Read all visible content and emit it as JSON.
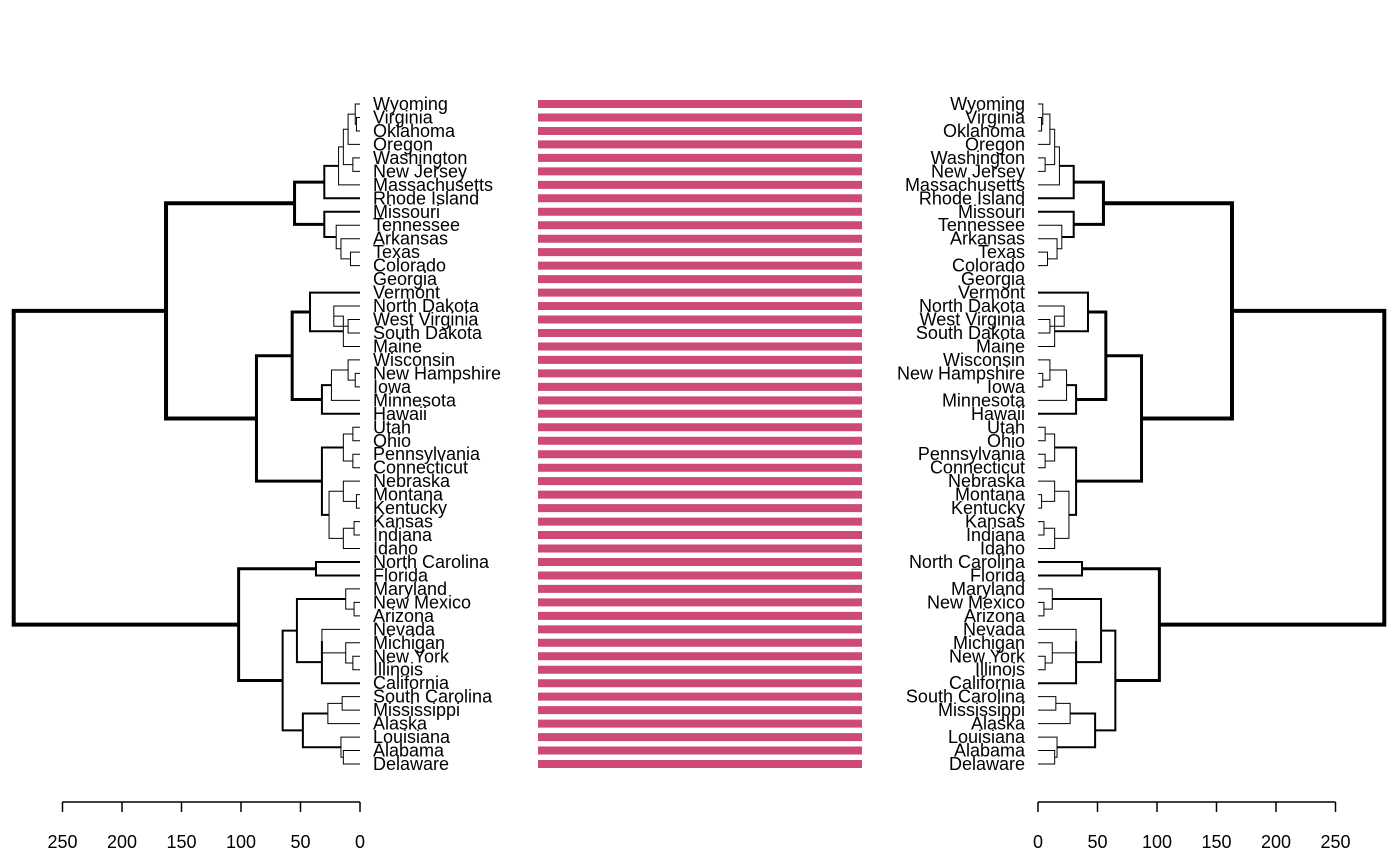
{
  "chart_data": {
    "type": "tanglegram",
    "leaves": [
      "Wyoming",
      "Virginia",
      "Oklahoma",
      "Oregon",
      "Washington",
      "New Jersey",
      "Massachusetts",
      "Rhode Island",
      "Missouri",
      "Tennessee",
      "Arkansas",
      "Texas",
      "Colorado",
      "Georgia",
      "Vermont",
      "North Dakota",
      "West Virginia",
      "South Dakota",
      "Maine",
      "Wisconsin",
      "New Hampshire",
      "Iowa",
      "Minnesota",
      "Hawaii",
      "Utah",
      "Ohio",
      "Pennsylvania",
      "Connecticut",
      "Nebraska",
      "Montana",
      "Kentucky",
      "Kansas",
      "Indiana",
      "Idaho",
      "North Carolina",
      "Florida",
      "Maryland",
      "New Mexico",
      "Arizona",
      "Nevada",
      "Michigan",
      "New York",
      "Illinois",
      "California",
      "South Carolina",
      "Mississippi",
      "Alaska",
      "Louisiana",
      "Alabama",
      "Delaware"
    ],
    "left_axis": {
      "ticks": [
        250,
        200,
        150,
        100,
        50,
        0
      ],
      "range": [
        0,
        250
      ]
    },
    "right_axis": {
      "ticks": [
        0,
        50,
        100,
        150,
        200,
        250
      ],
      "range": [
        0,
        250
      ]
    },
    "connector_color": "#cc4a74",
    "branch_color": "#000000",
    "dendrogram": {
      "leaf": [
        [
          "Wyoming",
          0
        ],
        [
          "Virginia",
          1
        ],
        [
          "Oklahoma",
          2
        ],
        [
          "Oregon",
          3
        ],
        [
          "Washington",
          4
        ],
        [
          "New Jersey",
          5
        ],
        [
          "Massachusetts",
          6
        ],
        [
          "Rhode Island",
          7
        ],
        [
          "Missouri",
          8
        ],
        [
          "Tennessee",
          9
        ],
        [
          "Arkansas",
          10
        ],
        [
          "Texas",
          11
        ],
        [
          "Colorado",
          12
        ],
        [
          "Georgia",
          13
        ],
        [
          "Vermont",
          14
        ],
        [
          "North Dakota",
          15
        ],
        [
          "West Virginia",
          16
        ],
        [
          "South Dakota",
          17
        ],
        [
          "Maine",
          18
        ],
        [
          "Wisconsin",
          19
        ],
        [
          "New Hampshire",
          20
        ],
        [
          "Iowa",
          21
        ],
        [
          "Minnesota",
          22
        ],
        [
          "Hawaii",
          23
        ],
        [
          "Utah",
          24
        ],
        [
          "Ohio",
          25
        ],
        [
          "Pennsylvania",
          26
        ],
        [
          "Connecticut",
          27
        ],
        [
          "Nebraska",
          28
        ],
        [
          "Montana",
          29
        ],
        [
          "Kentucky",
          30
        ],
        [
          "Kansas",
          31
        ],
        [
          "Indiana",
          32
        ],
        [
          "Idaho",
          33
        ],
        [
          "North Carolina",
          34
        ],
        [
          "Florida",
          35
        ],
        [
          "Maryland",
          36
        ],
        [
          "New Mexico",
          37
        ],
        [
          "Arizona",
          38
        ],
        [
          "Nevada",
          39
        ],
        [
          "Michigan",
          40
        ],
        [
          "New York",
          41
        ],
        [
          "Illinois",
          42
        ],
        [
          "California",
          43
        ],
        [
          "South Carolina",
          44
        ],
        [
          "Mississippi",
          45
        ],
        [
          "Alaska",
          46
        ],
        [
          "Louisiana",
          47
        ],
        [
          "Alabama",
          48
        ],
        [
          "Delaware",
          49
        ]
      ],
      "merges": [
        [
          3,
          1,
          2,
          1,
          0
        ],
        [
          4,
          0,
          50,
          1,
          0
        ],
        [
          6,
          4,
          5,
          1,
          0
        ],
        [
          10,
          51,
          3,
          1,
          0
        ],
        [
          14,
          53,
          52,
          1,
          0
        ],
        [
          18,
          54,
          6,
          1,
          0
        ],
        [
          30,
          55,
          7,
          2,
          0
        ],
        [
          8,
          11,
          12,
          1,
          0
        ],
        [
          16,
          10,
          57,
          1,
          0
        ],
        [
          20,
          9,
          58,
          1,
          0
        ],
        [
          30,
          8,
          59,
          2,
          0
        ],
        [
          55,
          56,
          60,
          3,
          0
        ],
        [
          10,
          16,
          17,
          1,
          0
        ],
        [
          22,
          15,
          62,
          1,
          0
        ],
        [
          14,
          18,
          63,
          1,
          0
        ],
        [
          42,
          14,
          64,
          2,
          0
        ],
        [
          4,
          20,
          21,
          1,
          0
        ],
        [
          10,
          19,
          66,
          1,
          0
        ],
        [
          24,
          67,
          22,
          1,
          0
        ],
        [
          32,
          68,
          23,
          2,
          0
        ],
        [
          57,
          65,
          69,
          3,
          0
        ],
        [
          6,
          24,
          25,
          1,
          0
        ],
        [
          6,
          26,
          27,
          1,
          0
        ],
        [
          14,
          71,
          72,
          1,
          0
        ],
        [
          3,
          29,
          30,
          1,
          0
        ],
        [
          14,
          28,
          74,
          1,
          0
        ],
        [
          5,
          31,
          32,
          1,
          0
        ],
        [
          14,
          76,
          33,
          1,
          0
        ],
        [
          26,
          75,
          77,
          1,
          0
        ],
        [
          32,
          73,
          78,
          2,
          0
        ],
        [
          87,
          70,
          79,
          3,
          0
        ],
        [
          163,
          61,
          80,
          4,
          1
        ],
        [
          37,
          34,
          35,
          2,
          0
        ],
        [
          5,
          37,
          38,
          1,
          0
        ],
        [
          12,
          36,
          83,
          1,
          0
        ],
        [
          6,
          41,
          42,
          1,
          0
        ],
        [
          12,
          40,
          85,
          1,
          0
        ],
        [
          32,
          39,
          86,
          1,
          0
        ],
        [
          32,
          87,
          43,
          2,
          0
        ],
        [
          53,
          84,
          88,
          2,
          0
        ],
        [
          15,
          44,
          45,
          1,
          0
        ],
        [
          27,
          90,
          46,
          1,
          0
        ],
        [
          14,
          48,
          49,
          1,
          0
        ],
        [
          16,
          47,
          92,
          1,
          0
        ],
        [
          48,
          91,
          93,
          2,
          0
        ],
        [
          65,
          89,
          94,
          2,
          0
        ],
        [
          102,
          82,
          95,
          3,
          1
        ],
        [
          291,
          81,
          96,
          4,
          1
        ]
      ]
    }
  }
}
